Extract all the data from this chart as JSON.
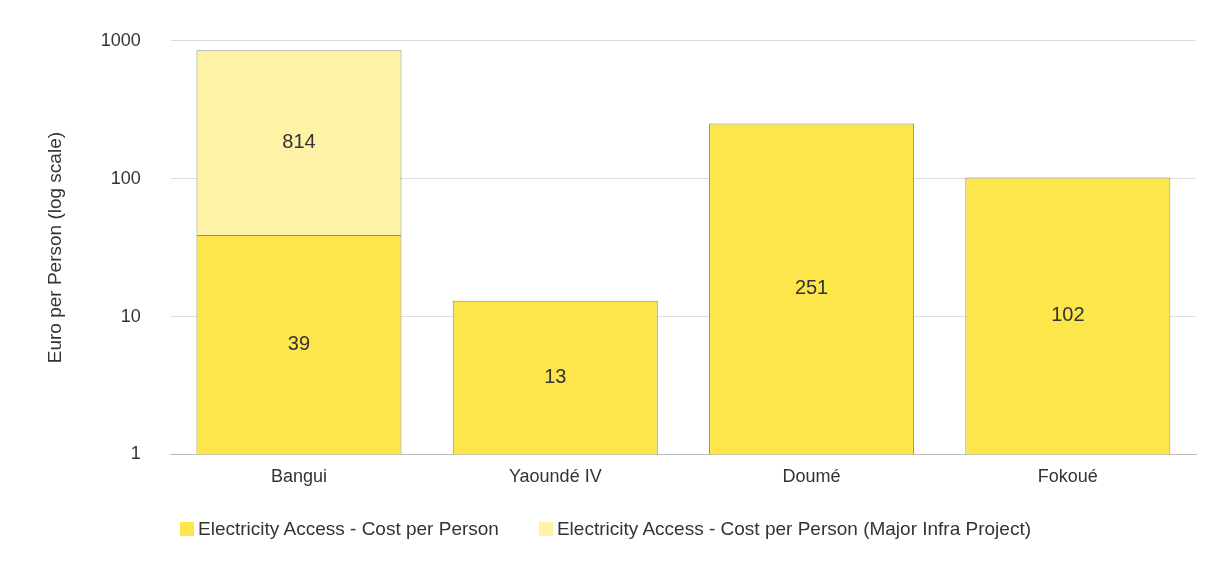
{
  "chart_data": {
    "type": "bar",
    "ylabel": "Euro per Person (log scale)",
    "categories": [
      "Bangui",
      "Yaoundé IV",
      "Doumé",
      "Fokoué"
    ],
    "series": [
      {
        "name": "Electricity Access - Cost per Person",
        "color": "#fce64c",
        "values": [
          39,
          13,
          251,
          102
        ]
      },
      {
        "name": "Electricity Access - Cost per Person (Major Infra Project)",
        "color": "#fdf2a6",
        "values": [
          814,
          null,
          null,
          null
        ]
      }
    ],
    "stacked": true,
    "log": true,
    "ylim": [
      1,
      1000
    ],
    "yticks": [
      1,
      10,
      100,
      1000
    ],
    "grid": "y",
    "legend": "bottom",
    "data_labels": true
  }
}
